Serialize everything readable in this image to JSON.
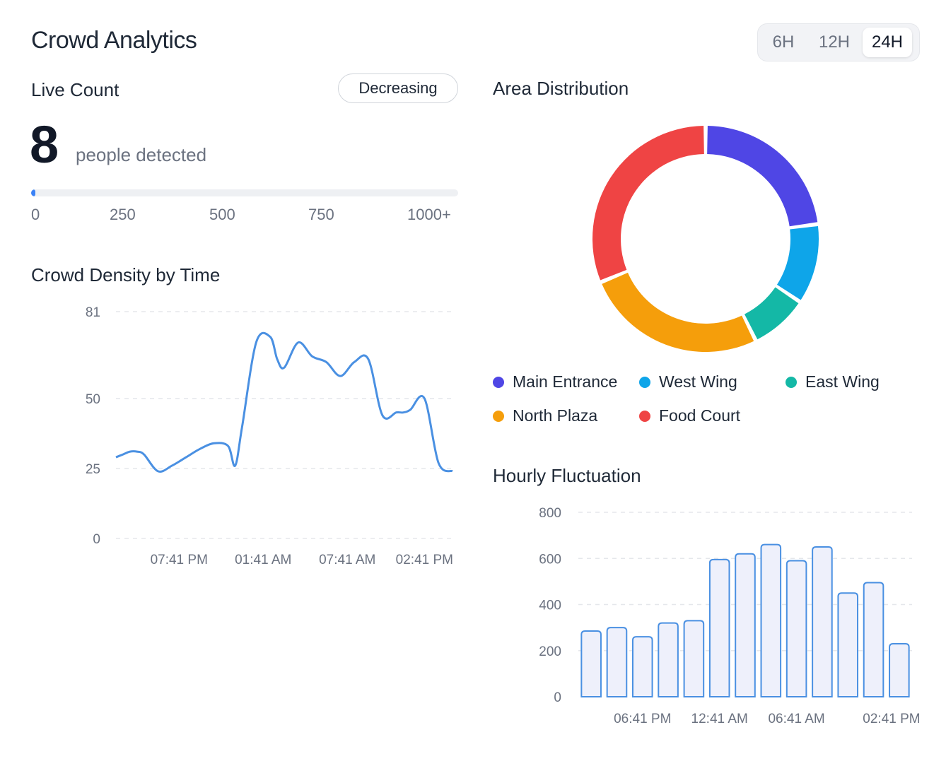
{
  "header": {
    "title": "Crowd Analytics"
  },
  "time_range": {
    "options": [
      "6H",
      "12H",
      "24H"
    ],
    "selected": "24H"
  },
  "live_count": {
    "title": "Live Count",
    "trend": "Decreasing",
    "count": "8",
    "unit_label": "people detected",
    "progress": {
      "value": 8,
      "max": 1000
    },
    "scale_labels": [
      "0",
      "250",
      "500",
      "750",
      "1000+"
    ]
  },
  "density": {
    "title": "Crowd Density by Time"
  },
  "distribution": {
    "title": "Area Distribution"
  },
  "fluctuation": {
    "title": "Hourly Fluctuation"
  },
  "colors": {
    "accent": "#3b82f6",
    "bar_fill": "#eef0fb",
    "bar_stroke": "#4a90e2"
  },
  "chart_data": [
    {
      "type": "line",
      "title": "Crowd Density by Time",
      "ylim": [
        0,
        81
      ],
      "yticks": [
        0,
        25,
        50,
        81
      ],
      "xtick_labels": [
        "07:41 PM",
        "01:41 AM",
        "07:41 AM",
        "02:41 PM"
      ],
      "xtick_positions": [
        4.5,
        10.5,
        16.5,
        22
      ],
      "x": [
        0,
        0.5,
        1,
        1.5,
        2,
        3,
        4,
        5,
        6,
        7,
        8,
        8.5,
        9,
        10,
        11,
        11.5,
        12,
        13,
        14,
        15,
        16,
        17,
        18,
        19,
        20,
        20.5,
        21,
        22,
        23,
        24
      ],
      "values": [
        29,
        30,
        31,
        31,
        30,
        24,
        26,
        29,
        32,
        34,
        33,
        26,
        40,
        70,
        72,
        64,
        61,
        70,
        65,
        63,
        58,
        63,
        64,
        44,
        45,
        45,
        46,
        50,
        27,
        24
      ],
      "color": "#4a90e2"
    },
    {
      "type": "pie",
      "title": "Area Distribution",
      "labels": [
        "Main Entrance",
        "West Wing",
        "East Wing",
        "North Plaza",
        "Food Court"
      ],
      "values": [
        22,
        11,
        8,
        25,
        30
      ],
      "colors": [
        "#4f46e5",
        "#0ea5e9",
        "#14b8a6",
        "#f59e0b",
        "#ef4444"
      ]
    },
    {
      "type": "bar",
      "title": "Hourly Fluctuation",
      "ylim": [
        0,
        800
      ],
      "yticks": [
        0,
        200,
        400,
        600,
        800
      ],
      "values": [
        285,
        300,
        260,
        320,
        330,
        595,
        620,
        660,
        590,
        650,
        450,
        495,
        230
      ],
      "xtick_labels": [
        "06:41 PM",
        "12:41 AM",
        "06:41 AM",
        "02:41 PM"
      ],
      "xtick_bar_index": [
        2,
        5,
        8,
        11.7
      ]
    }
  ]
}
